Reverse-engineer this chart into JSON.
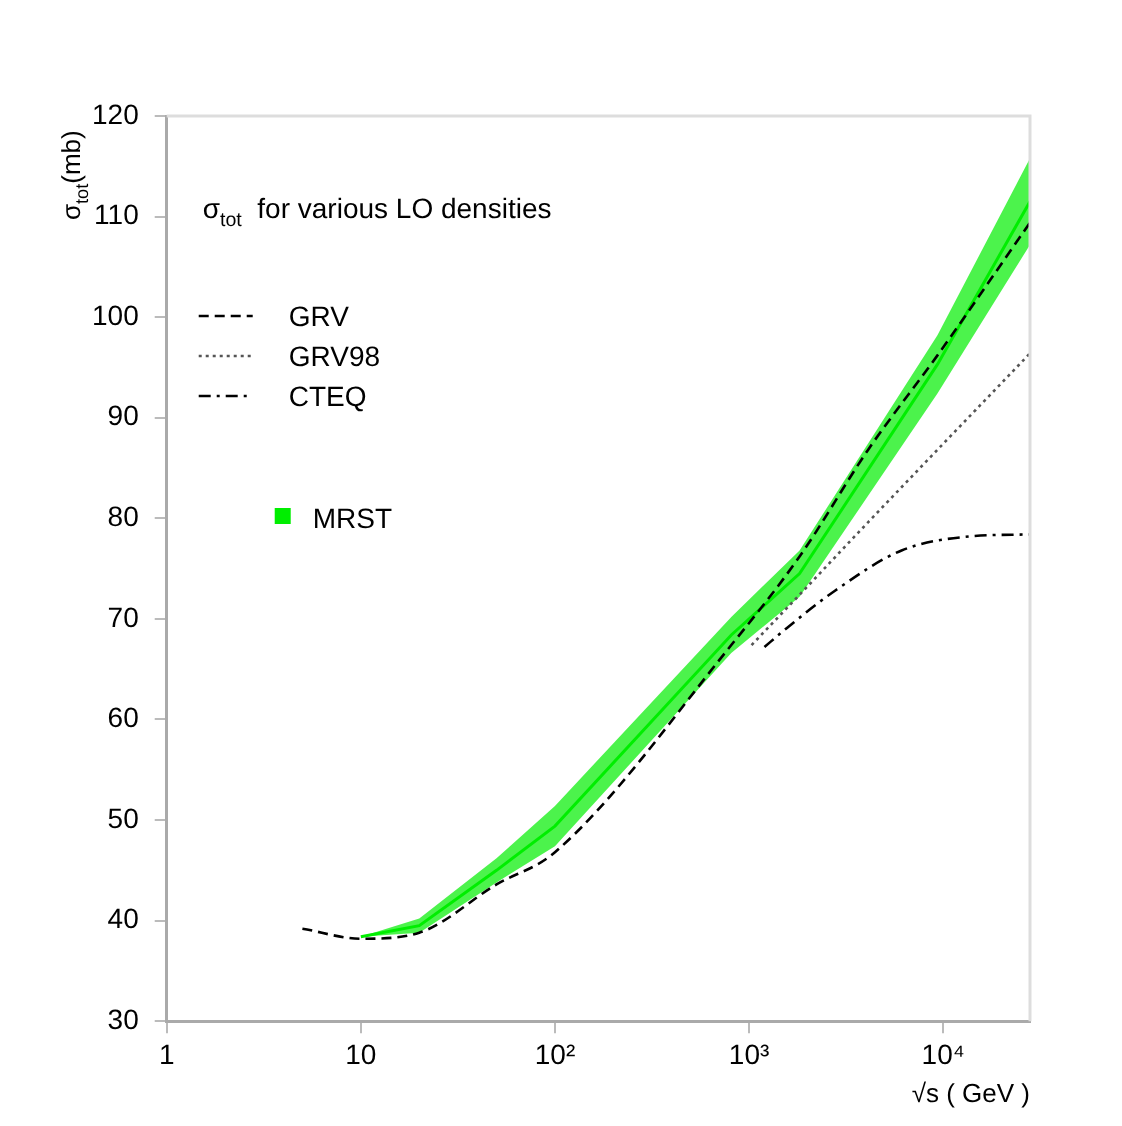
{
  "chart_data": {
    "type": "line",
    "legend_title": "σ$_{tot}$  for various LO densities",
    "xlabel": "√s ( GeV )",
    "ylabel": "σ$_{tot}$(mb)",
    "log": "x",
    "legend": "top left",
    "marker": "none",
    "xlim": [
      1,
      28000
    ],
    "xticks": [
      1,
      10,
      {
        "value": 100,
        "label": "10²"
      },
      {
        "value": 1000,
        "label": "10³"
      },
      {
        "value": 10000,
        "label": "10⁴"
      }
    ],
    "ylim": [
      30,
      120
    ],
    "yticks": [
      30,
      40,
      50,
      60,
      70,
      80,
      90,
      100,
      110,
      120
    ],
    "series": [
      {
        "name": "GRV",
        "color": "#000000",
        "line_style": "dashed",
        "x": [
          5,
          10,
          20,
          50,
          100,
          810,
          1820,
          4100,
          9340,
          28000
        ],
        "values": [
          39.2,
          38.2,
          38.8,
          43.6,
          46.8,
          67.4,
          76.2,
          86.8,
          96.2,
          109.4
        ]
      },
      {
        "name": "GRV98",
        "color": "#555555",
        "line_style": "dotted",
        "x": [
          1030,
          1820,
          4100,
          28000
        ],
        "values": [
          67.4,
          72.4,
          79.6,
          96.4
        ]
      },
      {
        "name": "CTEQ",
        "color": "#000000",
        "line_style": "dashdot",
        "x": [
          1200,
          1500,
          2770,
          6100,
          13700,
          28000
        ],
        "values": [
          67.2,
          68.8,
          72.8,
          76.8,
          78.2,
          78.4
        ]
      },
      {
        "name": "MRST",
        "color": "#00ee00",
        "x": [
          10,
          20,
          50,
          100,
          810,
          1820,
          9340,
          28000
        ],
        "values": [
          38.4,
          39.5,
          45,
          49.4,
          68.4,
          74.5,
          95.3,
          111.5
        ],
        "lower": [
          38.4,
          38.8,
          43.8,
          47.4,
          66.6,
          72.2,
          92.4,
          107.2
        ],
        "upper": [
          38.4,
          40.2,
          46.2,
          51.4,
          70.2,
          76.8,
          98.2,
          115.8
        ]
      }
    ]
  }
}
